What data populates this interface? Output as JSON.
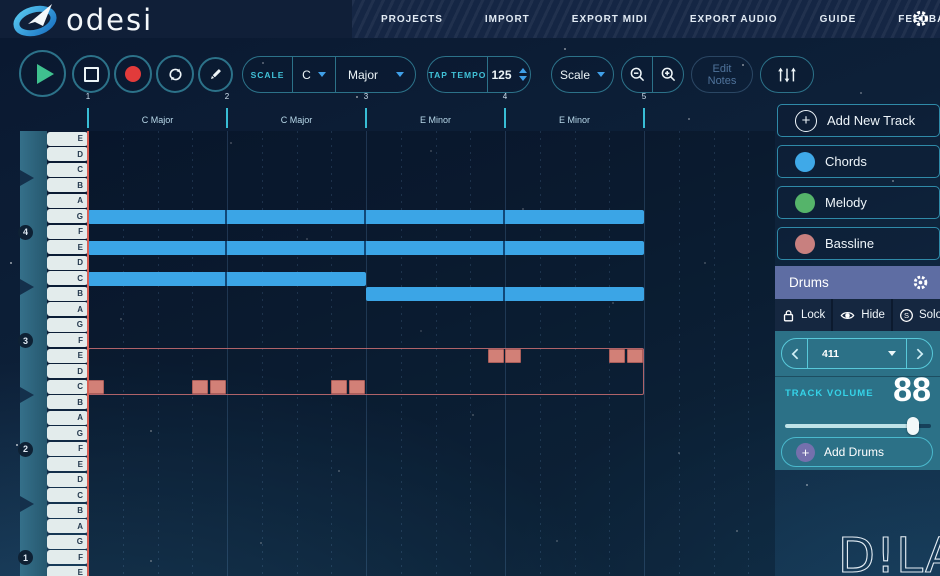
{
  "topbar": {
    "logo_text": "odesi",
    "menu": [
      "PROJECTS",
      "IMPORT",
      "EXPORT MIDI",
      "EXPORT AUDIO",
      "GUIDE",
      "FEEDBACK"
    ]
  },
  "toolbar": {
    "scale_group": {
      "label": "SCALE",
      "key": "C",
      "mode": "Major"
    },
    "tempo_group": {
      "label": "TAP TEMPO",
      "bpm": "125"
    },
    "scale_dropdown_value": "Scale",
    "edit_notes_label": "Edit Notes"
  },
  "timeline": {
    "measure_numbers": [
      "1",
      "2",
      "3",
      "4",
      "5"
    ],
    "chord_labels": [
      "C Major",
      "C Major",
      "E Minor",
      "E Minor"
    ]
  },
  "piano": {
    "keys": [
      "E5",
      "D5",
      "C5",
      "B4",
      "A4",
      "G4",
      "F4",
      "E4",
      "D4",
      "C4",
      "B3",
      "A3",
      "G3",
      "F3",
      "E3",
      "D3",
      "C3",
      "B2",
      "A2",
      "G2",
      "F2",
      "E2",
      "D2",
      "C2",
      "B1",
      "A1",
      "G1",
      "F1",
      "E1"
    ],
    "octave_badges": [
      {
        "key": "F4",
        "label": "4"
      },
      {
        "key": "F3",
        "label": "3"
      },
      {
        "key": "F2",
        "label": "2"
      },
      {
        "key": "F1",
        "label": "1"
      }
    ],
    "octave_breaks": [
      "B4",
      "B3",
      "B2",
      "B1"
    ]
  },
  "piano_roll": {
    "chord_note_color": "#3ba5e6",
    "bass_note_color": "#d28077",
    "chord_notes": [
      {
        "pitch": "G4",
        "from_measure": 1,
        "to_measure": 4
      },
      {
        "pitch": "E4",
        "from_measure": 1,
        "to_measure": 4
      },
      {
        "pitch": "C4",
        "from_measure": 1,
        "to_measure": 2
      },
      {
        "pitch": "B3",
        "from_measure": 3,
        "to_measure": 4
      }
    ],
    "bass_notes": [
      {
        "pitch": "C3",
        "measure": 1,
        "beat": 0
      },
      {
        "pitch": "C3",
        "measure": 1,
        "beat": 3
      },
      {
        "pitch": "C3",
        "measure": 1,
        "beat": 3.5
      },
      {
        "pitch": "C3",
        "measure": 2,
        "beat": 3
      },
      {
        "pitch": "C3",
        "measure": 2,
        "beat": 3.5
      },
      {
        "pitch": "E3",
        "measure": 3,
        "beat": 3.5
      },
      {
        "pitch": "E3",
        "measure": 4,
        "beat": 0
      },
      {
        "pitch": "E3",
        "measure": 4,
        "beat": 3
      },
      {
        "pitch": "E3",
        "measure": 4,
        "beat": 3.5
      }
    ],
    "bass_region": {
      "pitch_top": "E3",
      "pitch_bottom": "C3",
      "from_measure": 1,
      "to_measure": 4
    }
  },
  "sidebar": {
    "add_new_track_label": "Add New Track",
    "tracks": [
      {
        "label": "Chords",
        "color": "#3fa9e8"
      },
      {
        "label": "Melody",
        "color": "#55b46a"
      },
      {
        "label": "Bassline",
        "color": "#c8807f"
      }
    ],
    "drums_panel": {
      "title": "Drums",
      "lock_label": "Lock",
      "hide_label": "Hide",
      "solo_label": "Solo",
      "preset_value": "411",
      "track_volume_label": "TRACK VOLUME",
      "volume_value": "88",
      "volume_percent": 88,
      "add_drums_label": "Add Drums"
    }
  },
  "footer_logo_text": "D!LAB"
}
